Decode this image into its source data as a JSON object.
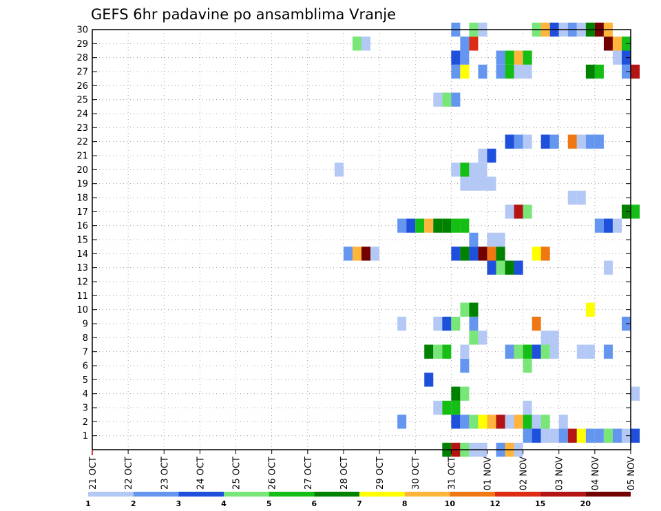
{
  "chart_data": {
    "type": "heatmap",
    "title": "GEFS 6hr padavine po ansamblima Vranje",
    "xlabel": "",
    "ylabel": "",
    "x_ticks": [
      "21 OCT",
      "22 OCT",
      "23 OCT",
      "24 OCT",
      "25 OCT",
      "26 OCT",
      "27 OCT",
      "28 OCT",
      "29 OCT",
      "30 OCT",
      "31 OCT",
      "01 NOV",
      "02 NOV",
      "03 NOV",
      "04 NOV",
      "05 NOV"
    ],
    "x_unit_description": "6-hour time steps; step 0 = 21 OCT 00Z, 4 steps per day",
    "y_ticks": [
      1,
      2,
      3,
      4,
      5,
      6,
      7,
      8,
      9,
      10,
      11,
      12,
      13,
      14,
      15,
      16,
      17,
      18,
      19,
      20,
      21,
      22,
      23,
      24,
      25,
      26,
      27,
      28,
      29,
      30
    ],
    "ylim": [
      0,
      30
    ],
    "grid": true,
    "legend": {
      "placement": "bottom",
      "labels": [
        "1",
        "2",
        "3",
        "4",
        "5",
        "6",
        "7",
        "8",
        "10",
        "12",
        "15",
        "20"
      ],
      "colors": [
        "#b4c8f5",
        "#6496f0",
        "#1e50dc",
        "#78e678",
        "#14be14",
        "#008200",
        "#ffff00",
        "#ffb43c",
        "#f07814",
        "#dc2d14",
        "#b41414",
        "#730000"
      ]
    },
    "colors_by_level": {
      "1": "#b4c8f5",
      "2": "#6496f0",
      "3": "#1e50dc",
      "4": "#78e678",
      "5": "#14be14",
      "6": "#008200",
      "7": "#ffff00",
      "8": "#ffb43c",
      "10": "#f07814",
      "12": "#dc2d14",
      "15": "#b41414",
      "20": "#730000"
    },
    "cells": [
      {
        "member": 0,
        "values": {
          "39": 6,
          "40": 15,
          "41": 4,
          "42": 1,
          "43": 1,
          "45": 2,
          "46": 8,
          "47": 1
        }
      },
      {
        "member": 1,
        "values": {
          "48": 2,
          "49": 3,
          "50": 1,
          "51": 1,
          "52": 2,
          "53": 15,
          "54": 7,
          "55": 2,
          "56": 2,
          "57": 4,
          "58": 2,
          "59": 1,
          "60": 3
        }
      },
      {
        "member": 2,
        "values": {
          "34": 2,
          "40": 3,
          "41": 2,
          "42": 4,
          "43": 7,
          "44": 8,
          "45": 15,
          "46": 1,
          "47": 8,
          "48": 5,
          "49": 1,
          "50": 4,
          "52": 1
        }
      },
      {
        "member": 3,
        "values": {
          "38": 1,
          "39": 5,
          "40": 5,
          "48": 1
        }
      },
      {
        "member": 4,
        "values": {
          "40": 6,
          "41": 4,
          "60": 1
        }
      },
      {
        "member": 5,
        "values": {
          "37": 3
        }
      },
      {
        "member": 6,
        "values": {
          "41": 2,
          "48": 4
        }
      },
      {
        "member": 7,
        "values": {
          "37": 6,
          "38": 4,
          "39": 5,
          "41": 1,
          "46": 2,
          "47": 4,
          "48": 5,
          "49": 3,
          "50": 4,
          "51": 1,
          "54": 1,
          "55": 1,
          "57": 2
        }
      },
      {
        "member": 8,
        "values": {
          "42": 4,
          "43": 1,
          "50": 1,
          "51": 1
        }
      },
      {
        "member": 9,
        "values": {
          "34": 1,
          "38": 1,
          "39": 3,
          "40": 4,
          "42": 2,
          "49": 10,
          "59": 2
        }
      },
      {
        "member": 10,
        "values": {
          "41": 4,
          "42": 6,
          "55": 7
        }
      },
      {
        "member": 13,
        "values": {
          "44": 3,
          "45": 4,
          "46": 6,
          "47": 3,
          "57": 1
        }
      },
      {
        "member": 14,
        "values": {
          "28": 2,
          "29": 8,
          "30": 20,
          "31": 1,
          "40": 3,
          "41": 6,
          "42": 3,
          "43": 20,
          "44": 10,
          "45": 6,
          "49": 7,
          "50": 10
        }
      },
      {
        "member": 15,
        "values": {
          "42": 2,
          "44": 1,
          "45": 1
        }
      },
      {
        "member": 16,
        "values": {
          "34": 2,
          "35": 3,
          "36": 5,
          "37": 8,
          "38": 6,
          "39": 6,
          "40": 5,
          "41": 5,
          "56": 2,
          "57": 3,
          "58": 1
        }
      },
      {
        "member": 17,
        "values": {
          "46": 1,
          "47": 15,
          "48": 4,
          "59": 6,
          "60": 5
        }
      },
      {
        "member": 18,
        "values": {
          "53": 1,
          "54": 1
        }
      },
      {
        "member": 19,
        "values": {
          "41": 1,
          "42": 1,
          "43": 1,
          "44": 1
        }
      },
      {
        "member": 20,
        "values": {
          "27": 1,
          "40": 1,
          "41": 5,
          "42": 1,
          "43": 1
        }
      },
      {
        "member": 21,
        "values": {
          "43": 1,
          "44": 3
        }
      },
      {
        "member": 22,
        "values": {
          "46": 3,
          "47": 2,
          "48": 1,
          "50": 3,
          "51": 2,
          "53": 10,
          "54": 1,
          "55": 2,
          "56": 2
        }
      },
      {
        "member": 25,
        "values": {
          "38": 1,
          "39": 4,
          "40": 2
        }
      },
      {
        "member": 27,
        "values": {
          "40": 2,
          "41": 7,
          "43": 2,
          "45": 2,
          "46": 5,
          "47": 1,
          "48": 1,
          "55": 6,
          "56": 5,
          "59": 2,
          "60": 15
        }
      },
      {
        "member": 28,
        "values": {
          "40": 3,
          "41": 2,
          "45": 2,
          "46": 5,
          "47": 8,
          "48": 5,
          "58": 1,
          "59": 3
        }
      },
      {
        "member": 29,
        "values": {
          "29": 4,
          "30": 1,
          "41": 2,
          "42": 12,
          "57": 20,
          "58": 8,
          "59": 5
        }
      },
      {
        "member": 30,
        "values": {
          "40": 2,
          "42": 4,
          "43": 1,
          "49": 4,
          "50": 8,
          "51": 3,
          "52": 1,
          "53": 2,
          "54": 1,
          "55": 6,
          "56": 20,
          "57": 8
        }
      }
    ]
  }
}
